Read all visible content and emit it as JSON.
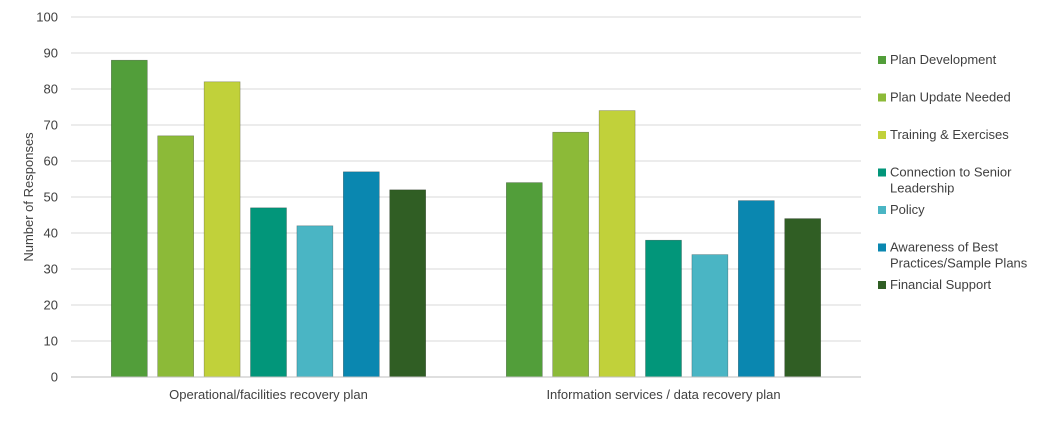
{
  "chart_data": {
    "type": "bar",
    "categories": [
      "Operational/facilities recovery plan",
      "Information services / data recovery plan"
    ],
    "series": [
      {
        "name": "Plan Development",
        "color": "#529E3A",
        "values": [
          88,
          54
        ]
      },
      {
        "name": "Plan Update Needed",
        "color": "#8CBA38",
        "values": [
          67,
          68
        ]
      },
      {
        "name": "Training & Exercises",
        "color": "#C1D13A",
        "values": [
          82,
          74
        ]
      },
      {
        "name": "Connection to Senior Leadership",
        "color": "#02967A",
        "values": [
          47,
          38
        ]
      },
      {
        "name": "Policy",
        "color": "#4AB5C4",
        "values": [
          42,
          34
        ]
      },
      {
        "name": "Awareness of Best Practices/Sample Plans",
        "color": "#0A87B0",
        "values": [
          57,
          49
        ]
      },
      {
        "name": "Financial Support",
        "color": "#305E24",
        "values": [
          52,
          44
        ]
      }
    ],
    "title": "",
    "xlabel": "",
    "ylabel": "Number of Responses",
    "ylim": [
      0,
      100
    ],
    "yticks": [
      0,
      10,
      20,
      30,
      40,
      50,
      60,
      70,
      80,
      90,
      100
    ],
    "grid": true,
    "legend_position": "right",
    "legend_lines": [
      [
        "Plan Development"
      ],
      [
        "Plan Update Needed"
      ],
      [
        "Training & Exercises"
      ],
      [
        "Connection to Senior",
        "Leadership"
      ],
      [
        "Policy"
      ],
      [
        "Awareness of Best",
        "Practices/Sample Plans"
      ],
      [
        "Financial Support"
      ]
    ]
  }
}
